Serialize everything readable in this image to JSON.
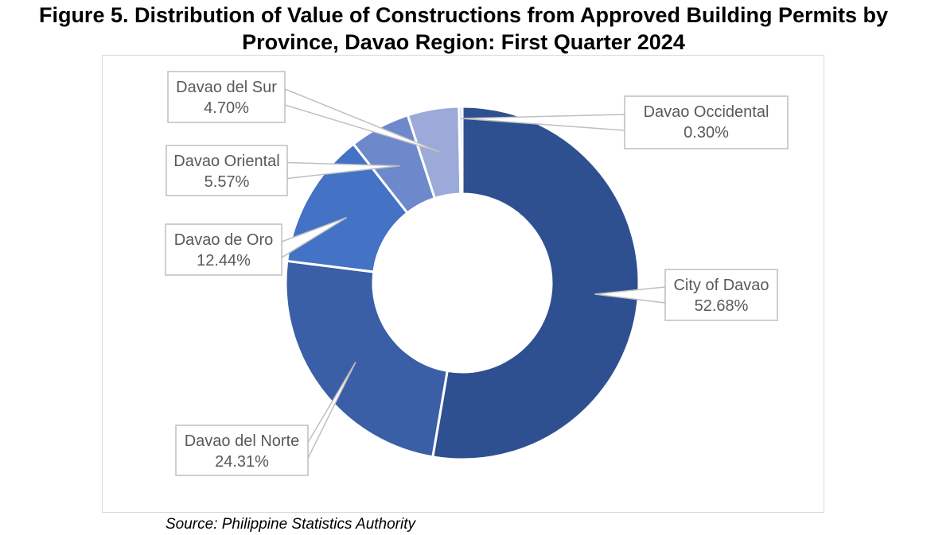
{
  "title": {
    "line1": "Figure 5. Distribution of Value of Constructions from Approved Building Permits by",
    "line2": "Province, Davao Region: First Quarter 2024"
  },
  "source": "Source: Philippine Statistics Authority",
  "chart_data": {
    "type": "pie",
    "variant": "donut",
    "title": "Figure 5. Distribution of Value of Constructions from Approved Building Permits by Province, Davao Region: First Quarter 2024",
    "legend": "none",
    "slices": [
      {
        "label": "City of Davao",
        "value": 52.68,
        "display": "52.68%",
        "color": "#2f5090"
      },
      {
        "label": "Davao del Norte",
        "value": 24.31,
        "display": "24.31%",
        "color": "#3a5fa6"
      },
      {
        "label": "Davao de Oro",
        "value": 12.44,
        "display": "12.44%",
        "color": "#4472c4"
      },
      {
        "label": "Davao Oriental",
        "value": 5.57,
        "display": "5.57%",
        "color": "#6e88cc"
      },
      {
        "label": "Davao del Sur",
        "value": 4.7,
        "display": "4.70%",
        "color": "#9caad9"
      },
      {
        "label": "Davao Occidental",
        "value": 0.3,
        "display": "0.30%",
        "color": "#c5cdea"
      }
    ]
  }
}
